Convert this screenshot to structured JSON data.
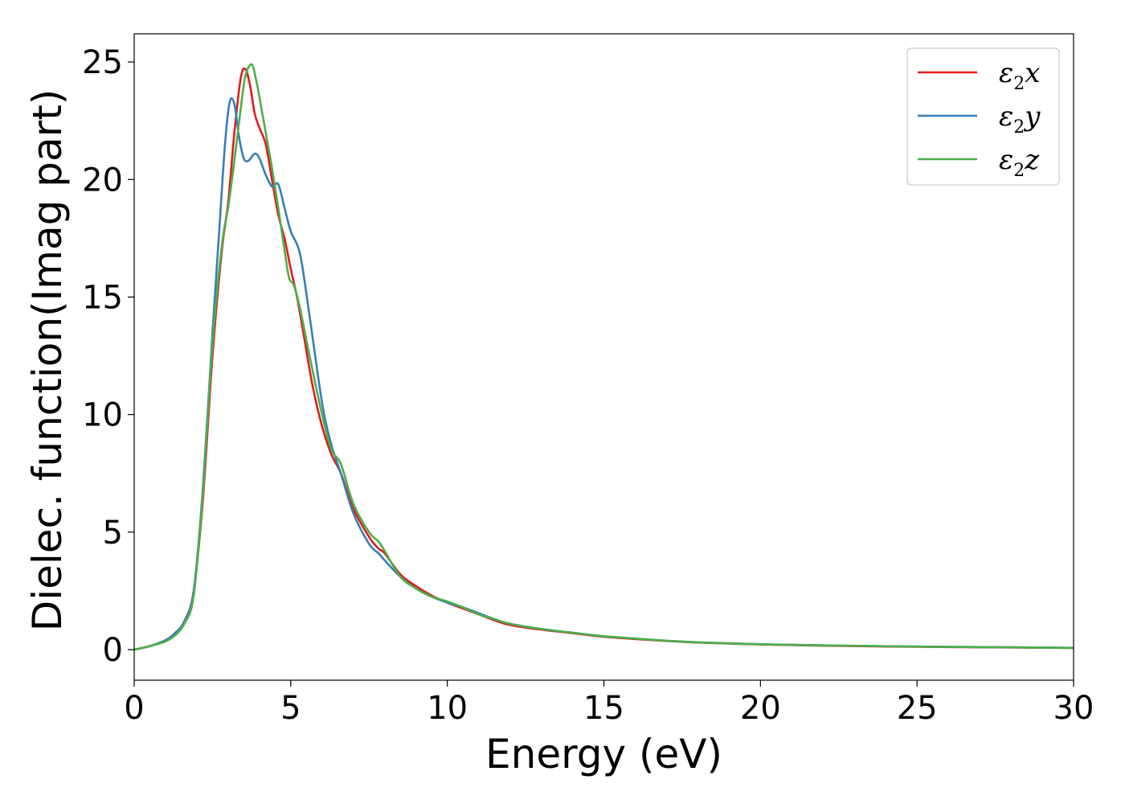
{
  "chart_data": {
    "type": "line",
    "title": "",
    "xlabel": "Energy (eV)",
    "ylabel": "Dielec. function(Imag part)",
    "xlim": [
      0,
      30
    ],
    "ylim": [
      -1.3,
      26.2
    ],
    "xticks": [
      "0",
      "5",
      "10",
      "15",
      "20",
      "25",
      "30"
    ],
    "yticks": [
      "0",
      "5",
      "10",
      "15",
      "20",
      "25"
    ],
    "grid": false,
    "legend_position": "top-right",
    "series": [
      {
        "name": "ε2x",
        "legend_base": "ε",
        "legend_sub": "2",
        "legend_suffix": "x",
        "color": "#e41a1c",
        "x": [
          0,
          0.5,
          1.0,
          1.3,
          1.6,
          1.9,
          2.2,
          2.5,
          2.8,
          3.0,
          3.2,
          3.4,
          3.55,
          3.7,
          3.85,
          4.0,
          4.2,
          4.4,
          4.6,
          4.8,
          5.0,
          5.2,
          5.4,
          5.7,
          6.0,
          6.3,
          6.6,
          7.0,
          7.5,
          7.8,
          8.0,
          8.5,
          9.0,
          9.5,
          10.0,
          10.5,
          11.0,
          11.5,
          12.0,
          13.0,
          14.0,
          15.0,
          16.0,
          17.0,
          18.0,
          20.0,
          22.0,
          25.0,
          28.0,
          30.0
        ],
        "y": [
          0,
          0.15,
          0.4,
          0.7,
          1.2,
          2.5,
          6.5,
          12.5,
          17.0,
          19.0,
          22.0,
          24.3,
          24.7,
          24.0,
          22.8,
          22.2,
          21.5,
          20.0,
          18.5,
          17.5,
          16.2,
          15.0,
          13.5,
          11.2,
          9.5,
          8.3,
          7.5,
          6.0,
          4.8,
          4.3,
          4.1,
          3.2,
          2.7,
          2.3,
          2.0,
          1.75,
          1.5,
          1.25,
          1.05,
          0.85,
          0.7,
          0.55,
          0.45,
          0.37,
          0.3,
          0.22,
          0.17,
          0.12,
          0.09,
          0.07
        ]
      },
      {
        "name": "ε2y",
        "legend_base": "ε",
        "legend_sub": "2",
        "legend_suffix": "y",
        "color": "#377eb8",
        "x": [
          0,
          0.5,
          1.0,
          1.3,
          1.6,
          1.9,
          2.2,
          2.5,
          2.7,
          2.9,
          3.05,
          3.2,
          3.35,
          3.5,
          3.65,
          3.85,
          4.0,
          4.2,
          4.4,
          4.6,
          4.8,
          5.0,
          5.3,
          5.6,
          6.0,
          6.3,
          6.6,
          7.0,
          7.5,
          7.8,
          8.0,
          8.5,
          9.0,
          9.5,
          10.0,
          10.5,
          11.0,
          11.5,
          12.0,
          13.0,
          14.0,
          15.0,
          16.0,
          17.0,
          18.0,
          20.0,
          22.0,
          25.0,
          28.0,
          30.0
        ],
        "y": [
          0,
          0.15,
          0.4,
          0.7,
          1.2,
          2.5,
          7.0,
          13.5,
          17.5,
          21.5,
          23.3,
          23.2,
          21.8,
          20.9,
          20.8,
          21.1,
          20.9,
          20.2,
          19.7,
          19.8,
          18.8,
          17.8,
          16.8,
          14.2,
          10.5,
          8.7,
          7.5,
          5.8,
          4.5,
          4.1,
          3.8,
          3.1,
          2.6,
          2.25,
          2.0,
          1.8,
          1.55,
          1.3,
          1.1,
          0.88,
          0.72,
          0.57,
          0.47,
          0.38,
          0.31,
          0.23,
          0.18,
          0.13,
          0.1,
          0.08
        ]
      },
      {
        "name": "ε2z",
        "legend_base": "ε",
        "legend_sub": "2",
        "legend_suffix": "z",
        "color": "#4daf4a",
        "x": [
          0,
          0.5,
          1.0,
          1.3,
          1.6,
          1.9,
          2.2,
          2.5,
          2.8,
          3.0,
          3.2,
          3.4,
          3.55,
          3.75,
          3.9,
          4.0,
          4.2,
          4.4,
          4.6,
          4.8,
          4.95,
          5.1,
          5.3,
          5.6,
          6.0,
          6.3,
          6.6,
          7.0,
          7.5,
          7.8,
          8.0,
          8.5,
          9.0,
          9.5,
          10.0,
          10.5,
          11.0,
          11.5,
          12.0,
          13.0,
          14.0,
          15.0,
          16.0,
          17.0,
          18.0,
          20.0,
          22.0,
          25.0,
          28.0,
          30.0
        ],
        "y": [
          0,
          0.15,
          0.35,
          0.6,
          1.1,
          2.3,
          6.8,
          13.0,
          17.2,
          18.8,
          20.8,
          23.0,
          24.4,
          24.9,
          24.2,
          23.5,
          22.0,
          20.5,
          18.8,
          17.0,
          15.8,
          15.5,
          14.5,
          12.5,
          10.0,
          8.5,
          7.9,
          6.2,
          5.0,
          4.6,
          4.2,
          3.1,
          2.6,
          2.25,
          2.05,
          1.8,
          1.5,
          1.3,
          1.1,
          0.88,
          0.72,
          0.57,
          0.47,
          0.38,
          0.31,
          0.23,
          0.18,
          0.13,
          0.1,
          0.07
        ]
      }
    ]
  }
}
